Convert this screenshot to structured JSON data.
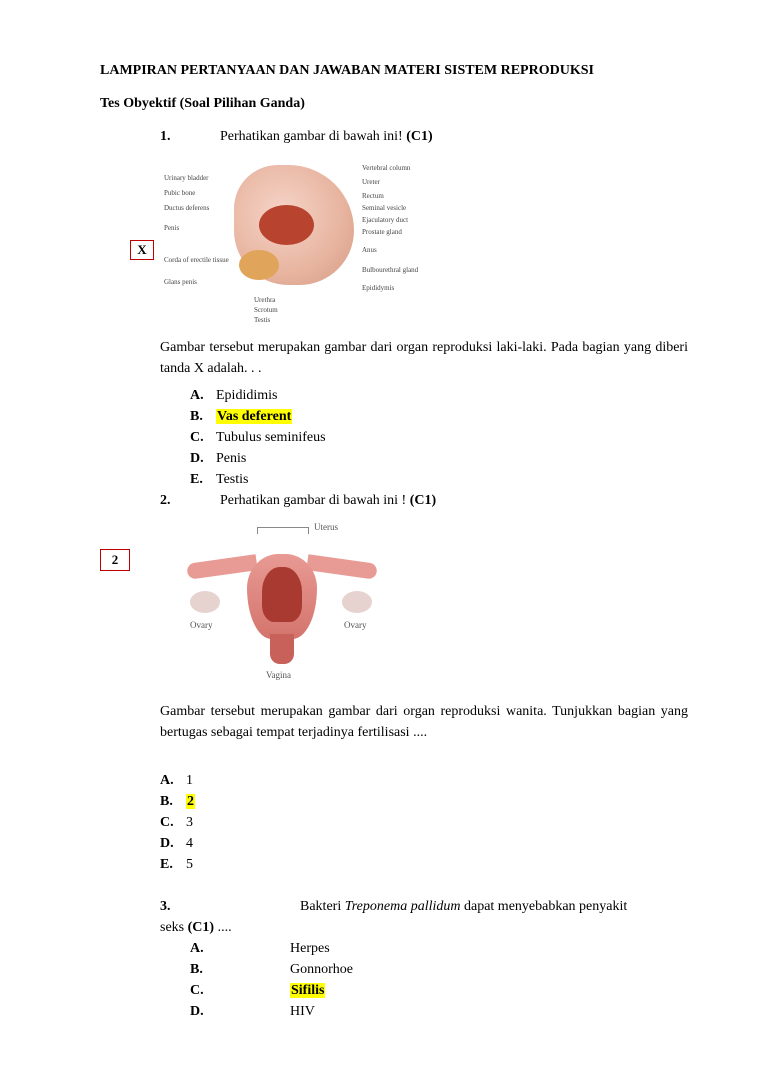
{
  "title": "LAMPIRAN PERTANYAAN DAN JAWABAN MATERI SISTEM REPRODUKSI",
  "subtitle": "Tes Obyektif (Soal Pilihan Ganda)",
  "q1": {
    "num": "1.",
    "prompt_a": "Perhatikan gambar di bawah ini! ",
    "prompt_b": "(C1)",
    "marker": "X",
    "labels_left": [
      "Urinary bladder",
      "Pubic bone",
      "Ductus deferens",
      "Penis",
      "Corda of erectile tissue",
      "Glans penis"
    ],
    "labels_right": [
      "Vertebral column",
      "Ureter",
      "Rectum",
      "Seminal vesicle",
      "Ejaculatory duct",
      "Prostate gland",
      "Anus",
      "Bulbourethral gland",
      "Epididymis"
    ],
    "labels_bottom": [
      "Urethra",
      "Scrotum",
      "Testis"
    ],
    "desc": "Gambar tersebut merupakan gambar dari organ reproduksi laki-laki. Pada bagian yang diberi tanda X adalah. . .",
    "opts": [
      {
        "l": "A.",
        "t": "Epididimis",
        "hl": false
      },
      {
        "l": "B.",
        "t": "Vas deferent",
        "hl": true
      },
      {
        "l": "C.",
        "t": "Tubulus seminifeus",
        "hl": false
      },
      {
        "l": "D.",
        "t": "Penis",
        "hl": false
      },
      {
        "l": "E.",
        "t": "Testis",
        "hl": false
      }
    ]
  },
  "q2": {
    "num": "2.",
    "prompt_a": "Perhatikan gambar di bawah ini ! ",
    "prompt_b": "(C1)",
    "marker": "2",
    "lbl_uterus": "Uterus",
    "lbl_ovary": "Ovary",
    "lbl_vagina": "Vagina",
    "desc": "Gambar tersebut merupakan gambar dari organ reproduksi wanita. Tunjukkan bagian yang bertugas sebagai tempat terjadinya fertilisasi ....",
    "opts": [
      {
        "l": "A.",
        "t": "1",
        "hl": false
      },
      {
        "l": "B.",
        "t": "2",
        "hl": true
      },
      {
        "l": "C.",
        "t": "3",
        "hl": false
      },
      {
        "l": "D.",
        "t": "4",
        "hl": false
      },
      {
        "l": "E.",
        "t": "5",
        "hl": false
      }
    ]
  },
  "q3": {
    "num": "3.",
    "prompt_a": "Bakteri ",
    "prompt_i": "Treponema pallidum ",
    "prompt_b": " dapat menyebabkan penyakit",
    "line2a": "seks ",
    "line2b": "(C1)",
    "line2c": " ....",
    "opts": [
      {
        "l": "A.",
        "t": "Herpes",
        "hl": false
      },
      {
        "l": "B.",
        "t": "Gonnorhoe",
        "hl": false
      },
      {
        "l": "C.",
        "t": "Sifilis",
        "hl": true
      },
      {
        "l": "D.",
        "t": "HIV",
        "hl": false
      }
    ]
  }
}
